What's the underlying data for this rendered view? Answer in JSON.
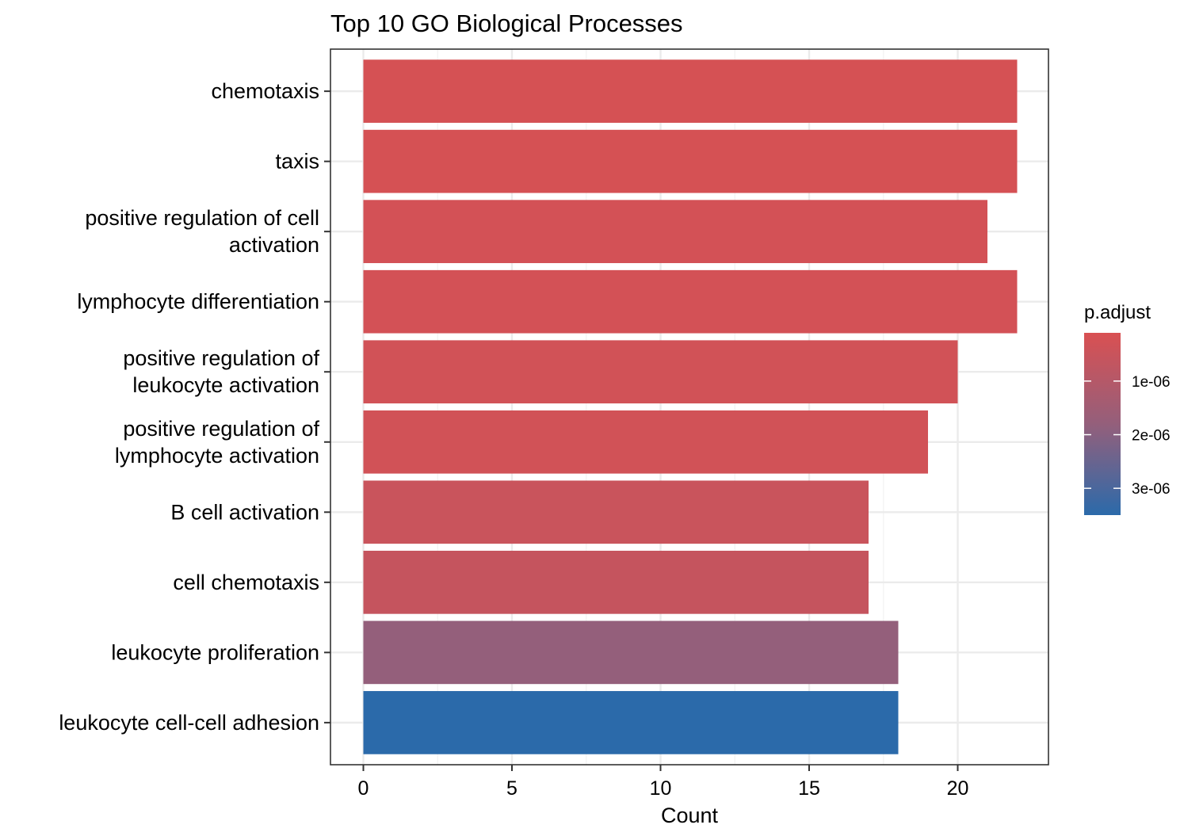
{
  "chart_data": {
    "type": "bar",
    "orientation": "horizontal",
    "title": "Top 10 GO Biological Processes",
    "xlabel": "Count",
    "ylabel": "",
    "xlim": [
      -1.1,
      22.5
    ],
    "xticks": [
      "0",
      "5",
      "10",
      "15",
      "20"
    ],
    "categories": [
      [
        "chemotaxis"
      ],
      [
        "taxis"
      ],
      [
        "positive regulation of cell",
        "activation"
      ],
      [
        "lymphocyte differentiation"
      ],
      [
        "positive regulation of",
        "leukocyte activation"
      ],
      [
        "positive regulation of",
        "lymphocyte activation"
      ],
      [
        "B cell activation"
      ],
      [
        "cell chemotaxis"
      ],
      [
        "leukocyte proliferation"
      ],
      [
        "leukocyte cell-cell adhesion"
      ]
    ],
    "values": [
      22,
      22,
      21,
      22,
      20,
      19,
      17,
      17,
      18,
      18
    ],
    "p_adjust": [
      2e-07,
      2e-07,
      2.5e-07,
      2.5e-07,
      3e-07,
      3e-07,
      5e-07,
      6e-07,
      1.8e-06,
      3.5e-06
    ],
    "grid": true,
    "legend": {
      "title": "p.adjust",
      "position": "right",
      "labels": [
        "1e-06",
        "2e-06",
        "3e-06"
      ],
      "label_values": [
        1e-06,
        2e-06,
        3e-06
      ],
      "range": [
        1e-07,
        3.5e-06
      ],
      "color_low": "#d95052",
      "color_mid": "#945f7b",
      "color_high": "#2b6aaa"
    }
  },
  "colors": {
    "panel_border": "#333333",
    "grid_major": "#ebebeb",
    "grid_minor": "#f3f3f3",
    "axis_tick": "#333333"
  }
}
